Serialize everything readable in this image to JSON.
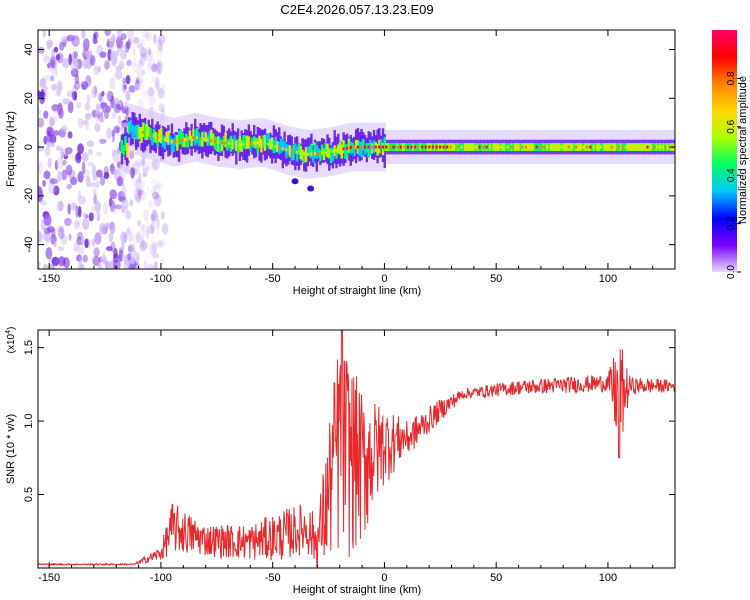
{
  "title": "C2E4.2026.057.13.23.E09",
  "chart_data": [
    {
      "type": "heatmap",
      "name": "spectrogram",
      "xlabel": "Height of straight line (km)",
      "ylabel": "Frequency (Hz)",
      "xlim": [
        -155,
        130
      ],
      "ylim": [
        -50,
        48
      ],
      "xticks": [
        "-150",
        "-100",
        "-50",
        "0",
        "50",
        "100"
      ],
      "xtick_values": [
        -150,
        -100,
        -50,
        0,
        50,
        100
      ],
      "yticks": [
        "-40",
        "-20",
        "0",
        "20",
        "40"
      ],
      "ytick_values": [
        -40,
        -20,
        0,
        20,
        40
      ],
      "colorbar": {
        "label": "Normalized spectral amplitude",
        "range": [
          0,
          1
        ],
        "ticks": [
          "0.0",
          "0.2",
          "0.4",
          "0.6",
          "0.8"
        ],
        "tick_values": [
          0.0,
          0.2,
          0.4,
          0.6,
          0.8
        ],
        "colormap": [
          "#e6d8ff",
          "#7b00ff",
          "#0000ff",
          "#00c8ff",
          "#00ff66",
          "#aaff00",
          "#ffd800",
          "#ff8000",
          "#ff0000",
          "#ff0066"
        ]
      },
      "band_center_hz": [
        {
          "x": -115,
          "y": 8
        },
        {
          "x": -105,
          "y": 5
        },
        {
          "x": -95,
          "y": 2
        },
        {
          "x": -85,
          "y": 4
        },
        {
          "x": -75,
          "y": 2
        },
        {
          "x": -65,
          "y": 1
        },
        {
          "x": -55,
          "y": 2
        },
        {
          "x": -45,
          "y": -1
        },
        {
          "x": -35,
          "y": -3
        },
        {
          "x": -25,
          "y": -2
        },
        {
          "x": -15,
          "y": 0
        },
        {
          "x": 0,
          "y": 0
        },
        {
          "x": 50,
          "y": 0
        },
        {
          "x": 100,
          "y": 0
        },
        {
          "x": 130,
          "y": 0
        }
      ],
      "noise_region_km": [
        -155,
        -112
      ]
    },
    {
      "type": "line",
      "name": "snr",
      "xlabel": "Height of straight line (km)",
      "ylabel": "SNR (10 * v/v)",
      "y_multiplier": "(x10",
      "y_multiplier_exp": "4",
      "xlim": [
        -155,
        130
      ],
      "ylim": [
        0,
        1.62
      ],
      "xticks": [
        "-150",
        "-100",
        "-50",
        "0",
        "50",
        "100"
      ],
      "xtick_values": [
        -150,
        -100,
        -50,
        0,
        50,
        100
      ],
      "yticks": [
        "0.5",
        "1.0",
        "1.5"
      ],
      "ytick_values": [
        0.5,
        1.0,
        1.5
      ],
      "color": "#e8282a",
      "envelope": [
        {
          "x": -155,
          "lo": 0.02,
          "hi": 0.03
        },
        {
          "x": -112,
          "lo": 0.02,
          "hi": 0.03
        },
        {
          "x": -100,
          "lo": 0.05,
          "hi": 0.15
        },
        {
          "x": -95,
          "lo": 0.1,
          "hi": 0.45
        },
        {
          "x": -80,
          "lo": 0.08,
          "hi": 0.3
        },
        {
          "x": -60,
          "lo": 0.05,
          "hi": 0.3
        },
        {
          "x": -45,
          "lo": 0.05,
          "hi": 0.4
        },
        {
          "x": -35,
          "lo": 0.1,
          "hi": 0.45
        },
        {
          "x": -30,
          "lo": 0.0,
          "hi": 0.35
        },
        {
          "x": -20,
          "lo": 0.0,
          "hi": 1.62
        },
        {
          "x": -10,
          "lo": 0.1,
          "hi": 1.2
        },
        {
          "x": 0,
          "lo": 0.55,
          "hi": 1.1
        },
        {
          "x": 10,
          "lo": 0.75,
          "hi": 1.0
        },
        {
          "x": 25,
          "lo": 1.0,
          "hi": 1.15
        },
        {
          "x": 35,
          "lo": 1.15,
          "hi": 1.22
        },
        {
          "x": 60,
          "lo": 1.18,
          "hi": 1.28
        },
        {
          "x": 100,
          "lo": 1.2,
          "hi": 1.32
        },
        {
          "x": 105,
          "lo": 0.75,
          "hi": 1.57
        },
        {
          "x": 110,
          "lo": 1.18,
          "hi": 1.3
        },
        {
          "x": 130,
          "lo": 1.2,
          "hi": 1.28
        }
      ]
    }
  ]
}
